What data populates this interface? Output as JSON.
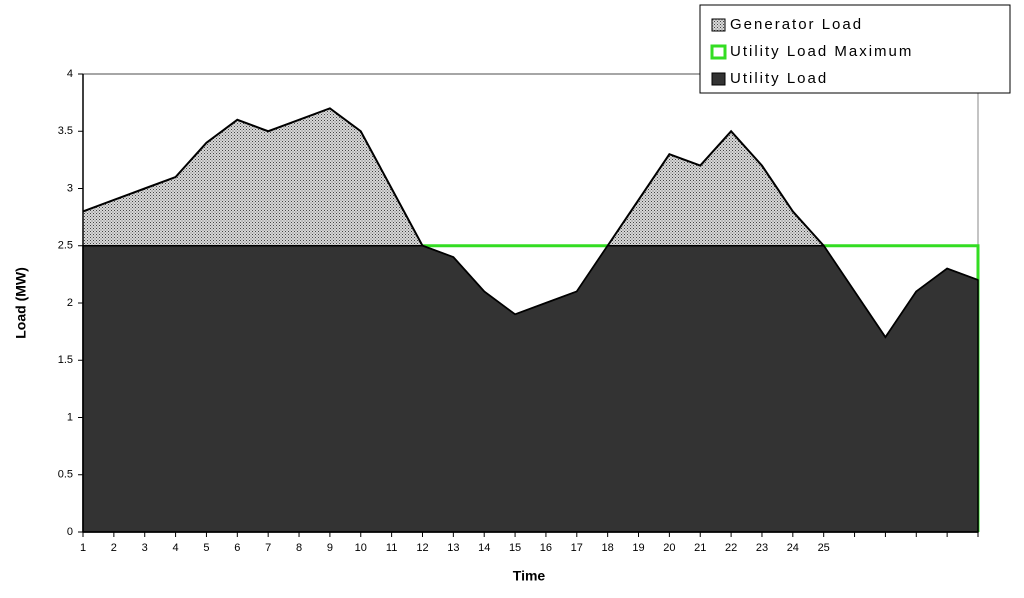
{
  "chart_data": {
    "type": "area",
    "x_label": "Time",
    "y_label": "Load (MW)",
    "categories": [
      "1",
      "2",
      "3",
      "4",
      "5",
      "6",
      "7",
      "8",
      "9",
      "10",
      "11",
      "12",
      "13",
      "14",
      "15",
      "16",
      "17",
      "18",
      "19",
      "20",
      "21",
      "22",
      "23",
      "24",
      "25",
      null,
      null,
      null,
      null,
      null
    ],
    "series": [
      {
        "name": "Generator Load",
        "color": "#888888",
        "values": [
          0.3,
          0.4,
          0.5,
          0.6,
          0.9,
          1.1,
          1.0,
          1.1,
          1.2,
          1.0,
          0.5,
          0,
          0,
          0,
          0,
          0,
          0,
          0,
          0.4,
          0.8,
          0.7,
          1.0,
          0.7,
          0.3,
          0,
          0,
          0,
          0,
          0,
          0
        ]
      },
      {
        "name": "Utility Load Maximum",
        "color": "#33dd22",
        "values": [
          2.5,
          2.5,
          2.5,
          2.5,
          2.5,
          2.5,
          2.5,
          2.5,
          2.5,
          2.5,
          2.5,
          2.5,
          2.5,
          2.5,
          2.5,
          2.5,
          2.5,
          2.5,
          2.5,
          2.5,
          2.5,
          2.5,
          2.5,
          2.5,
          2.5,
          2.5,
          2.5,
          2.5,
          2.5,
          2.5
        ]
      },
      {
        "name": "Utility Load",
        "color": "#333333",
        "values": [
          2.5,
          2.5,
          2.5,
          2.5,
          2.5,
          2.5,
          2.5,
          2.5,
          2.5,
          2.5,
          2.5,
          2.5,
          2.4,
          2.1,
          1.9,
          2.0,
          2.1,
          2.5,
          2.5,
          2.5,
          2.5,
          2.5,
          2.5,
          2.5,
          2.5,
          2.1,
          1.7,
          2.1,
          2.3,
          2.2
        ]
      }
    ],
    "ylim": [
      0,
      4
    ],
    "yticks": [
      0,
      0.5,
      1,
      1.5,
      2,
      2.5,
      3,
      3.5,
      4
    ]
  }
}
